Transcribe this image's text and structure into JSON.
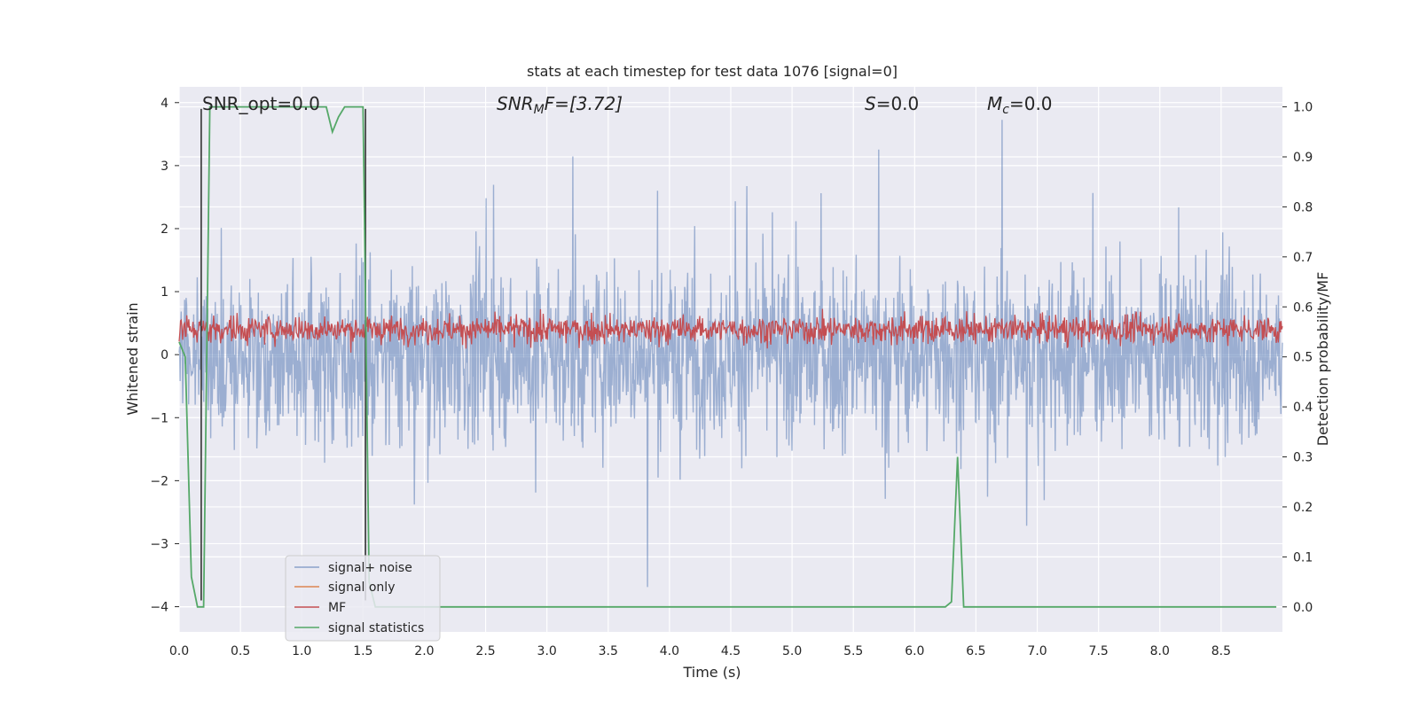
{
  "chart_data": {
    "type": "line",
    "title": "stats at each timestep for test data 1076 [signal=0]",
    "xlabel": "Time (s)",
    "ylabel": "Whitened strain",
    "ylabel_right": "Detection probability/MF",
    "xlim": [
      0.0,
      9.0
    ],
    "ylim": [
      -4.4,
      4.25
    ],
    "ylim_right": [
      -0.05,
      1.04
    ],
    "x_ticks": [
      "0.0",
      "0.5",
      "1.0",
      "1.5",
      "2.0",
      "2.5",
      "3.0",
      "3.5",
      "4.0",
      "4.5",
      "5.0",
      "5.5",
      "6.0",
      "6.5",
      "7.0",
      "7.5",
      "8.0",
      "8.5"
    ],
    "y_ticks": [
      "4",
      "3",
      "2",
      "1",
      "0",
      "−1",
      "−2",
      "−3",
      "−4"
    ],
    "y_ticks_right": [
      "1.0",
      "0.9",
      "0.8",
      "0.7",
      "0.6",
      "0.5",
      "0.4",
      "0.3",
      "0.2",
      "0.1",
      "0.0"
    ],
    "grid": true,
    "legend_position": "lower-left",
    "annotations": {
      "snr_opt": "SNR_opt=0.0",
      "snr_mf_base": "SNR",
      "snr_mf_sub": "M",
      "snr_mf_rest": "F=[3.72]",
      "s_base": "S",
      "s_rest": "=0.0",
      "mc_base": "M",
      "mc_sub": "c",
      "mc_rest": "=0.0"
    },
    "series": [
      {
        "name": "signal+ noise",
        "color": "#4c72b0",
        "description_values": "noise band approx -1.7 to 1.5 with spikes up to ±3.9"
      },
      {
        "name": "signal only",
        "color": "#dd8452",
        "values": []
      },
      {
        "name": "MF",
        "color": "#c44e52",
        "range": [
          0.05,
          0.95
        ]
      },
      {
        "name": "signal statistics",
        "color": "#55a868",
        "x": [
          0.0,
          0.05,
          0.1,
          0.15,
          0.2,
          0.25,
          0.3,
          0.4,
          0.5,
          1.0,
          1.15,
          1.2,
          1.25,
          1.3,
          1.35,
          1.4,
          1.45,
          1.5,
          1.55,
          1.6,
          1.65,
          2.0,
          3.0,
          4.0,
          5.0,
          6.0,
          6.25,
          6.3,
          6.35,
          6.4,
          6.45,
          7.0,
          8.0,
          8.95
        ],
        "values": [
          0.53,
          0.5,
          0.06,
          0.0,
          0.0,
          1.0,
          1.0,
          1.0,
          1.0,
          1.0,
          1.0,
          1.0,
          0.95,
          0.98,
          1.0,
          1.0,
          1.0,
          1.0,
          0.05,
          0.0,
          0.0,
          0.0,
          0.0,
          0.0,
          0.0,
          0.0,
          0.0,
          0.01,
          0.3,
          0.0,
          0.0,
          0.0,
          0.0,
          0.0
        ]
      }
    ],
    "vertical_markers": [
      {
        "x": 0.18,
        "color": "#333333"
      },
      {
        "x": 1.52,
        "color": "#333333"
      }
    ],
    "colors": {
      "plot_background": "#eaeaf2",
      "grid": "#ffffff"
    }
  }
}
